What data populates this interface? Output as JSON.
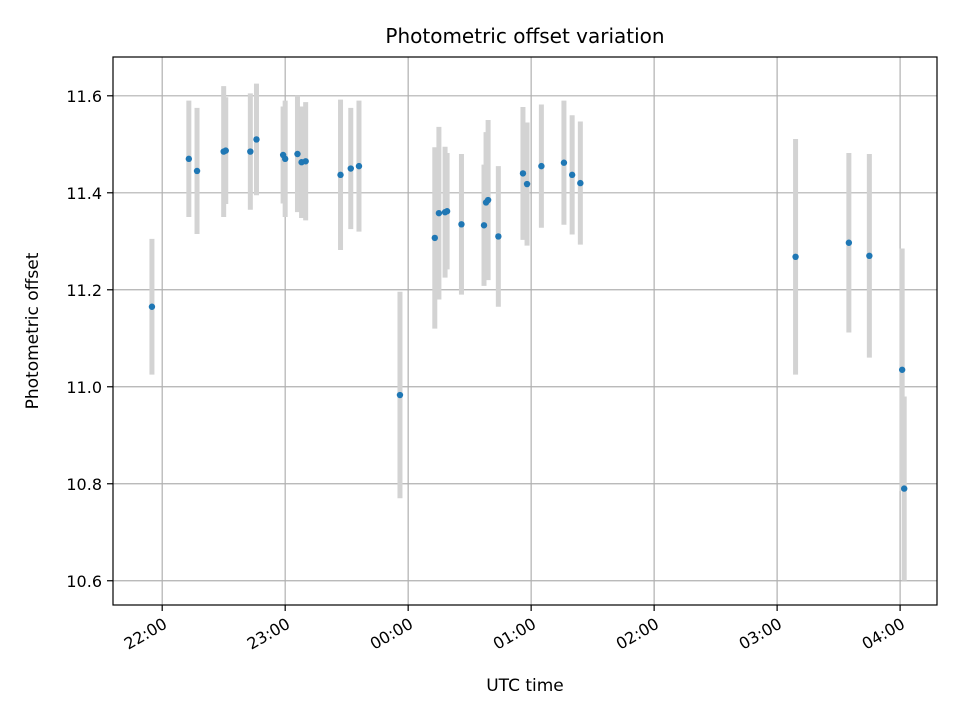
{
  "chart_data": {
    "type": "scatter",
    "title": "Photometric offset variation",
    "xlabel": "UTC time",
    "ylabel": "Photometric offset",
    "xlim": [
      "21:36",
      "04:18"
    ],
    "ylim": [
      10.55,
      11.68
    ],
    "grid": true,
    "xticks": [
      "22:00",
      "23:00",
      "00:00",
      "01:00",
      "02:00",
      "03:00",
      "04:00"
    ],
    "yticks": [
      10.6,
      10.8,
      11.0,
      11.2,
      11.4,
      11.6
    ],
    "point_color": "#1f77b4",
    "errorbar_color": "#d3d3d3",
    "points": [
      {
        "x": "21:55",
        "y": 11.165,
        "yerr": 0.14
      },
      {
        "x": "22:13",
        "y": 11.47,
        "yerr": 0.12
      },
      {
        "x": "22:17",
        "y": 11.445,
        "yerr": 0.13
      },
      {
        "x": "22:30",
        "y": 11.485,
        "yerr": 0.135
      },
      {
        "x": "22:31",
        "y": 11.487,
        "yerr": 0.11
      },
      {
        "x": "22:43",
        "y": 11.485,
        "yerr": 0.12
      },
      {
        "x": "22:46",
        "y": 11.51,
        "yerr": 0.115
      },
      {
        "x": "22:59",
        "y": 11.478,
        "yerr": 0.1
      },
      {
        "x": "23:00",
        "y": 11.47,
        "yerr": 0.12
      },
      {
        "x": "23:06",
        "y": 11.48,
        "yerr": 0.12
      },
      {
        "x": "23:08",
        "y": 11.463,
        "yerr": 0.115
      },
      {
        "x": "23:10",
        "y": 11.465,
        "yerr": 0.122
      },
      {
        "x": "23:27",
        "y": 11.437,
        "yerr": 0.155
      },
      {
        "x": "23:32",
        "y": 11.45,
        "yerr": 0.125
      },
      {
        "x": "23:36",
        "y": 11.455,
        "yerr": 0.135
      },
      {
        "x": "23:56",
        "y": 10.983,
        "yerr": 0.213
      },
      {
        "x": "00:13",
        "y": 11.307,
        "yerr": 0.187
      },
      {
        "x": "00:15",
        "y": 11.358,
        "yerr": 0.178
      },
      {
        "x": "00:18",
        "y": 11.36,
        "yerr": 0.135
      },
      {
        "x": "00:19",
        "y": 11.362,
        "yerr": 0.12
      },
      {
        "x": "00:26",
        "y": 11.335,
        "yerr": 0.145
      },
      {
        "x": "00:37",
        "y": 11.333,
        "yerr": 0.125
      },
      {
        "x": "00:38",
        "y": 11.38,
        "yerr": 0.145
      },
      {
        "x": "00:39",
        "y": 11.385,
        "yerr": 0.165
      },
      {
        "x": "00:44",
        "y": 11.31,
        "yerr": 0.145
      },
      {
        "x": "00:56",
        "y": 11.44,
        "yerr": 0.137
      },
      {
        "x": "00:58",
        "y": 11.418,
        "yerr": 0.127
      },
      {
        "x": "01:05",
        "y": 11.455,
        "yerr": 0.127
      },
      {
        "x": "01:16",
        "y": 11.462,
        "yerr": 0.128
      },
      {
        "x": "01:20",
        "y": 11.437,
        "yerr": 0.123
      },
      {
        "x": "01:24",
        "y": 11.42,
        "yerr": 0.127
      },
      {
        "x": "03:09",
        "y": 11.268,
        "yerr": 0.243
      },
      {
        "x": "03:35",
        "y": 11.297,
        "yerr": 0.185
      },
      {
        "x": "03:45",
        "y": 11.27,
        "yerr": 0.21
      },
      {
        "x": "04:01",
        "y": 11.035,
        "yerr": 0.25
      },
      {
        "x": "04:02",
        "y": 10.79,
        "yerr": 0.19
      }
    ]
  }
}
